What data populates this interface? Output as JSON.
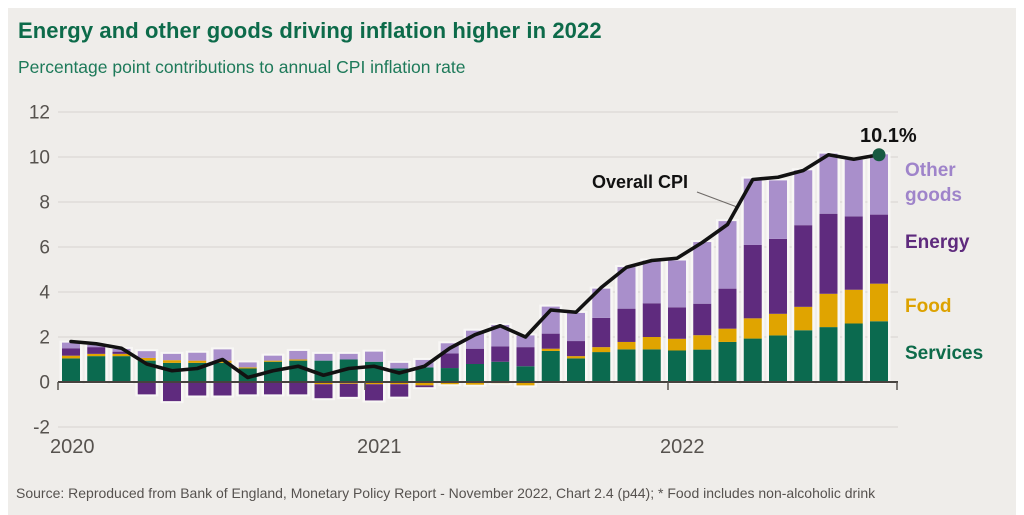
{
  "header": {
    "title": "Energy and other goods driving inflation higher in 2022",
    "subtitle": "Percentage point contributions to annual CPI inflation rate"
  },
  "annotations": {
    "line_label": "Overall CPI",
    "end_label": "10.1%",
    "end_dot_color": "#175941"
  },
  "legend": {
    "other_goods": {
      "label": "Other goods",
      "color": "#9f84ca"
    },
    "energy": {
      "label": "Energy",
      "color": "#5e2a7d"
    },
    "food": {
      "label": "Food",
      "color": "#dda200"
    },
    "services": {
      "label": "Services",
      "color": "#0d6b4a"
    }
  },
  "axis": {
    "yticks": [
      12,
      10,
      8,
      6,
      4,
      2,
      0,
      -2
    ],
    "xticks": [
      "2020",
      "2021",
      "2022"
    ],
    "ylim": [
      -2,
      12
    ],
    "grid_color": "#dcd9d5",
    "axis_color": "#46423e",
    "tick_label_color": "#56524e"
  },
  "chart_data": {
    "type": "bar",
    "stacked": true,
    "title": "Energy and other goods driving inflation higher in 2022",
    "subtitle": "Percentage point contributions to annual CPI inflation rate",
    "ylim": [
      -2,
      12
    ],
    "legend_position": "right",
    "grid": true,
    "x": [
      "Jan 2020",
      "Feb 2020",
      "Mar 2020",
      "Apr 2020",
      "May 2020",
      "Jun 2020",
      "Jul 2020",
      "Aug 2020",
      "Sep 2020",
      "Oct 2020",
      "Nov 2020",
      "Dec 2020",
      "Jan 2021",
      "Feb 2021",
      "Mar 2021",
      "Apr 2021",
      "May 2021",
      "Jun 2021",
      "Jul 2021",
      "Aug 2021",
      "Sep 2021",
      "Oct 2021",
      "Nov 2021",
      "Dec 2021",
      "Jan 2022",
      "Feb 2022",
      "Mar 2022",
      "Apr 2022",
      "May 2022",
      "Jun 2022",
      "Jul 2022",
      "Aug 2022",
      "Sep 2022"
    ],
    "series": [
      {
        "name": "Services",
        "color": "#0b6a4f",
        "values": [
          1.05,
          1.15,
          1.15,
          0.95,
          0.85,
          0.85,
          0.85,
          0.6,
          0.9,
          0.95,
          0.95,
          1.0,
          0.9,
          0.6,
          0.65,
          0.62,
          0.8,
          0.9,
          0.7,
          1.38,
          1.05,
          1.33,
          1.45,
          1.45,
          1.4,
          1.44,
          1.78,
          1.93,
          2.07,
          2.3,
          2.44,
          2.6,
          2.7
        ]
      },
      {
        "name": "Food",
        "color": "#e0a400",
        "values": [
          0.12,
          0.1,
          0.1,
          0.12,
          0.12,
          0.1,
          0.1,
          0.05,
          0.05,
          0.05,
          -0.1,
          -0.08,
          -0.1,
          -0.1,
          -0.15,
          -0.1,
          -0.12,
          -0.05,
          -0.15,
          0.1,
          0.1,
          0.22,
          0.33,
          0.55,
          0.52,
          0.64,
          0.59,
          0.9,
          0.96,
          1.04,
          1.48,
          1.5,
          1.67
        ]
      },
      {
        "name": "Energy",
        "color": "#5f2b7e",
        "values": [
          0.33,
          0.3,
          0.1,
          -0.55,
          -0.85,
          -0.6,
          -0.6,
          -0.55,
          -0.55,
          -0.55,
          -0.62,
          -0.58,
          -0.72,
          -0.55,
          -0.08,
          0.65,
          0.68,
          0.68,
          0.85,
          0.67,
          0.67,
          1.3,
          1.48,
          1.5,
          1.4,
          1.4,
          1.78,
          3.26,
          3.33,
          3.63,
          3.56,
          3.26,
          3.07
        ]
      },
      {
        "name": "Other goods",
        "color": "#a98fcb",
        "values": [
          0.25,
          0.1,
          0.12,
          0.3,
          0.28,
          0.35,
          0.5,
          0.22,
          0.22,
          0.38,
          0.3,
          0.25,
          0.45,
          0.25,
          0.33,
          0.45,
          0.8,
          0.95,
          0.52,
          1.2,
          1.25,
          1.3,
          1.85,
          1.9,
          2.08,
          2.74,
          3.0,
          2.95,
          2.6,
          2.44,
          2.67,
          2.52,
          2.68
        ]
      }
    ],
    "line": {
      "name": "Overall CPI",
      "color": "#121212",
      "values": [
        1.8,
        1.7,
        1.5,
        0.8,
        0.5,
        0.6,
        1.0,
        0.2,
        0.5,
        0.7,
        0.3,
        0.6,
        0.7,
        0.4,
        0.7,
        1.5,
        2.1,
        2.5,
        2.0,
        3.2,
        3.1,
        4.2,
        5.1,
        5.4,
        5.5,
        6.2,
        7.0,
        9.0,
        9.1,
        9.4,
        10.1,
        9.9,
        10.1
      ]
    },
    "end_value_label": "10.1%"
  },
  "footer": {
    "source": "Source: Reproduced from Bank of England, Monetary Policy Report - November 2022, Chart 2.4 (p44); * Food includes non-alcoholic drink"
  }
}
